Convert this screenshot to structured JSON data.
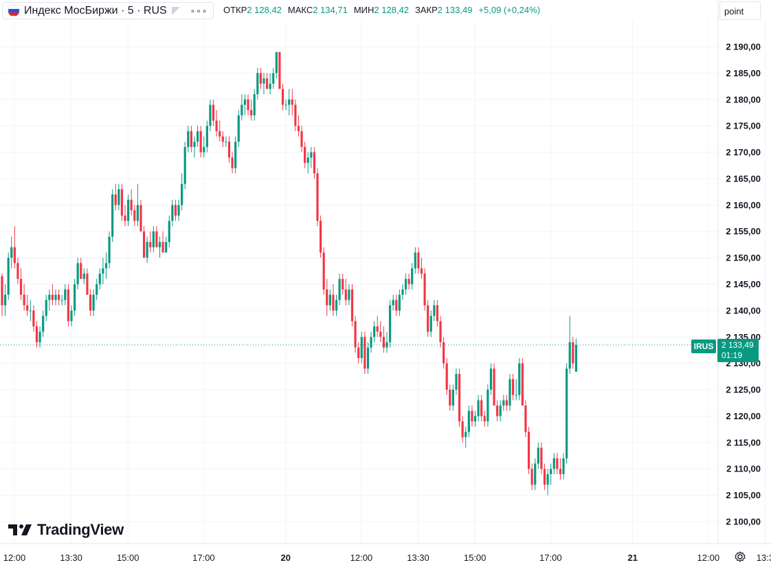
{
  "header": {
    "title": "Индекс МосБиржи · 5 · RUS",
    "more_icon": "more-dots-icon",
    "ohlc": [
      {
        "label": "ОТКР",
        "value": "2 128,42"
      },
      {
        "label": "МАКС",
        "value": "2 134,71"
      },
      {
        "label": "МИН",
        "value": "2 128,42"
      },
      {
        "label": "ЗАКР",
        "value": "2 133,49"
      }
    ],
    "change": "+5,09 (+0,24%)",
    "scale_mode": "point"
  },
  "logo": "TradingView",
  "last_price": {
    "symbol": "IRUS",
    "price": "2 133,49",
    "countdown": "01:19",
    "value": 2133.49
  },
  "colors": {
    "up": "#089981",
    "down": "#f23645",
    "grid": "#f0f3fa",
    "text": "#131722"
  },
  "chart_data": {
    "type": "candlestick",
    "y_ticks": [
      "2 190,00",
      "2 185,00",
      "2 180,00",
      "2 175,00",
      "2 170,00",
      "2 165,00",
      "2 160,00",
      "2 155,00",
      "2 150,00",
      "2 145,00",
      "2 140,00",
      "2 135,00",
      "2 130,00",
      "2 125,00",
      "2 120,00",
      "2 115,00",
      "2 110,00",
      "2 105,00",
      "2 100,00"
    ],
    "y_tick_values": [
      2190,
      2185,
      2180,
      2175,
      2170,
      2165,
      2160,
      2155,
      2150,
      2145,
      2140,
      2135,
      2130,
      2125,
      2120,
      2115,
      2110,
      2105,
      2100
    ],
    "ylim": [
      2098.5,
      2192.5
    ],
    "x_ticks": [
      {
        "label": "12:00",
        "index": 0
      },
      {
        "label": "13:30",
        "index": 18
      },
      {
        "label": "15:00",
        "index": 36
      },
      {
        "label": "17:00",
        "index": 60
      },
      {
        "label": "20",
        "index": 86,
        "bold": true
      },
      {
        "label": "12:00",
        "index": 110
      },
      {
        "label": "13:30",
        "index": 128
      },
      {
        "label": "15:00",
        "index": 146
      },
      {
        "label": "17:00",
        "index": 170
      },
      {
        "label": "21",
        "index": 196,
        "bold": true
      },
      {
        "label": "12:00",
        "index": 220
      },
      {
        "label": "13:3",
        "index": 238
      }
    ],
    "candles": [
      [
        2146.5,
        2147,
        2139,
        2141
      ],
      [
        2141,
        2145,
        2139,
        2143
      ],
      [
        2143,
        2151,
        2142,
        2150
      ],
      [
        2150,
        2154,
        2148,
        2152
      ],
      [
        2152,
        2156,
        2148,
        2149
      ],
      [
        2149,
        2150,
        2145,
        2146
      ],
      [
        2146,
        2148,
        2142,
        2143
      ],
      [
        2143,
        2145,
        2140,
        2141
      ],
      [
        2141,
        2143,
        2139,
        2140
      ],
      [
        2140,
        2142,
        2138,
        2140
      ],
      [
        2140,
        2141,
        2136,
        2137
      ],
      [
        2137,
        2138,
        2133,
        2134
      ],
      [
        2134,
        2137,
        2133,
        2136
      ],
      [
        2136,
        2140,
        2135,
        2139
      ],
      [
        2139,
        2143,
        2138,
        2142
      ],
      [
        2142,
        2144,
        2140,
        2143
      ],
      [
        2143,
        2145,
        2141,
        2142
      ],
      [
        2142,
        2144,
        2141,
        2143
      ],
      [
        2143,
        2144,
        2141,
        2142
      ],
      [
        2142,
        2143,
        2141,
        2142
      ],
      [
        2142,
        2145,
        2141,
        2144
      ],
      [
        2144,
        2145,
        2137,
        2138
      ],
      [
        2138,
        2141,
        2137,
        2140
      ],
      [
        2140,
        2146,
        2139,
        2145
      ],
      [
        2145,
        2150,
        2144,
        2149
      ],
      [
        2149,
        2150,
        2146,
        2146
      ],
      [
        2146,
        2148,
        2145,
        2147
      ],
      [
        2147,
        2148,
        2143,
        2143
      ],
      [
        2143,
        2144,
        2139,
        2140
      ],
      [
        2140,
        2144,
        2139,
        2143
      ],
      [
        2143,
        2146,
        2142,
        2145
      ],
      [
        2145,
        2148,
        2144,
        2147
      ],
      [
        2147,
        2150,
        2145,
        2148
      ],
      [
        2148,
        2151,
        2146,
        2149
      ],
      [
        2149,
        2155,
        2148,
        2154
      ],
      [
        2154,
        2163,
        2153,
        2162
      ],
      [
        2162,
        2164,
        2159,
        2160
      ],
      [
        2160,
        2164,
        2159,
        2163
      ],
      [
        2163,
        2164,
        2157,
        2158
      ],
      [
        2158,
        2160,
        2156,
        2157
      ],
      [
        2157,
        2162,
        2156,
        2161
      ],
      [
        2161,
        2163,
        2158,
        2159
      ],
      [
        2159,
        2160,
        2156,
        2157
      ],
      [
        2157,
        2164,
        2156,
        2160
      ],
      [
        2160,
        2161,
        2155,
        2155
      ],
      [
        2155,
        2156,
        2150,
        2150
      ],
      [
        2150,
        2154,
        2149,
        2153
      ],
      [
        2153,
        2155,
        2151,
        2152
      ],
      [
        2152,
        2156,
        2151,
        2155
      ],
      [
        2155,
        2156,
        2152,
        2152
      ],
      [
        2152,
        2154,
        2150,
        2153
      ],
      [
        2153,
        2155,
        2151,
        2151
      ],
      [
        2151,
        2154,
        2151,
        2153
      ],
      [
        2153,
        2158,
        2152,
        2157
      ],
      [
        2157,
        2161,
        2156,
        2160
      ],
      [
        2160,
        2161,
        2157,
        2158
      ],
      [
        2158,
        2161,
        2157,
        2160
      ],
      [
        2160,
        2166,
        2159,
        2164
      ],
      [
        2164,
        2172,
        2163,
        2171
      ],
      [
        2171,
        2175,
        2170,
        2174
      ],
      [
        2174,
        2175,
        2170,
        2171
      ],
      [
        2171,
        2173,
        2169,
        2172
      ],
      [
        2172,
        2175,
        2171,
        2174
      ],
      [
        2174,
        2175,
        2169,
        2170
      ],
      [
        2170,
        2173,
        2169,
        2171
      ],
      [
        2171,
        2176,
        2170,
        2175
      ],
      [
        2175,
        2180,
        2174,
        2179
      ],
      [
        2179,
        2180,
        2175,
        2176
      ],
      [
        2176,
        2178,
        2173,
        2174
      ],
      [
        2174,
        2176,
        2172,
        2173
      ],
      [
        2173,
        2174,
        2171,
        2172
      ],
      [
        2172,
        2173,
        2171,
        2172
      ],
      [
        2172,
        2173,
        2168,
        2169
      ],
      [
        2169,
        2170,
        2166,
        2167
      ],
      [
        2167,
        2173,
        2166,
        2172
      ],
      [
        2172,
        2178,
        2171,
        2177
      ],
      [
        2177,
        2181,
        2176,
        2179
      ],
      [
        2179,
        2181,
        2177,
        2180
      ],
      [
        2180,
        2181,
        2177,
        2178
      ],
      [
        2178,
        2180,
        2176,
        2177
      ],
      [
        2177,
        2182,
        2176,
        2181
      ],
      [
        2181,
        2186,
        2180,
        2185
      ],
      [
        2185,
        2186,
        2182,
        2183
      ],
      [
        2183,
        2185,
        2181,
        2184
      ],
      [
        2184,
        2185,
        2182,
        2182
      ],
      [
        2182,
        2185,
        2181,
        2183
      ],
      [
        2183,
        2186,
        2182,
        2185
      ],
      [
        2185,
        2189,
        2184,
        2189
      ],
      [
        2189,
        2189,
        2182,
        2182
      ],
      [
        2182,
        2183,
        2178,
        2179
      ],
      [
        2179,
        2180,
        2178,
        2179
      ],
      [
        2179,
        2182,
        2177,
        2180
      ],
      [
        2180,
        2182,
        2177,
        2179
      ],
      [
        2179,
        2180,
        2174,
        2175
      ],
      [
        2175,
        2177,
        2173,
        2174
      ],
      [
        2174,
        2175,
        2170,
        2171
      ],
      [
        2171,
        2172,
        2167,
        2168
      ],
      [
        2168,
        2170,
        2166,
        2169
      ],
      [
        2169,
        2171,
        2167,
        2170
      ],
      [
        2170,
        2171,
        2165,
        2166
      ],
      [
        2166,
        2167,
        2156,
        2157
      ],
      [
        2157,
        2158,
        2150,
        2151
      ],
      [
        2151,
        2152,
        2143,
        2144
      ],
      [
        2144,
        2146,
        2139,
        2141
      ],
      [
        2141,
        2144,
        2140,
        2143
      ],
      [
        2143,
        2145,
        2139,
        2140
      ],
      [
        2140,
        2143,
        2139,
        2142
      ],
      [
        2142,
        2147,
        2141,
        2146
      ],
      [
        2146,
        2147,
        2143,
        2144
      ],
      [
        2144,
        2146,
        2141,
        2142
      ],
      [
        2142,
        2145,
        2141,
        2144
      ],
      [
        2144,
        2145,
        2137,
        2138
      ],
      [
        2138,
        2139,
        2132,
        2133
      ],
      [
        2133,
        2134,
        2130,
        2131
      ],
      [
        2131,
        2136,
        2130,
        2135
      ],
      [
        2135,
        2136,
        2128,
        2129
      ],
      [
        2129,
        2134,
        2128,
        2133
      ],
      [
        2133,
        2136,
        2132,
        2135
      ],
      [
        2135,
        2138,
        2134,
        2137
      ],
      [
        2137,
        2139,
        2135,
        2136
      ],
      [
        2136,
        2138,
        2134,
        2135
      ],
      [
        2135,
        2137,
        2132,
        2133
      ],
      [
        2133,
        2136,
        2132,
        2134
      ],
      [
        2134,
        2142,
        2133,
        2141
      ],
      [
        2141,
        2143,
        2140,
        2142
      ],
      [
        2142,
        2143,
        2139,
        2140
      ],
      [
        2140,
        2144,
        2139,
        2143
      ],
      [
        2143,
        2145,
        2142,
        2144
      ],
      [
        2144,
        2147,
        2143,
        2146
      ],
      [
        2146,
        2147,
        2144,
        2145
      ],
      [
        2145,
        2149,
        2144,
        2148
      ],
      [
        2148,
        2152,
        2147,
        2151
      ],
      [
        2151,
        2152,
        2147,
        2148
      ],
      [
        2148,
        2150,
        2146,
        2147
      ],
      [
        2147,
        2148,
        2140,
        2141
      ],
      [
        2141,
        2142,
        2135,
        2136
      ],
      [
        2136,
        2140,
        2135,
        2139
      ],
      [
        2139,
        2142,
        2138,
        2141
      ],
      [
        2141,
        2142,
        2137,
        2138
      ],
      [
        2138,
        2139,
        2133,
        2134
      ],
      [
        2134,
        2135,
        2129,
        2130
      ],
      [
        2130,
        2131,
        2124,
        2125
      ],
      [
        2125,
        2126,
        2121,
        2122
      ],
      [
        2122,
        2126,
        2121,
        2125
      ],
      [
        2125,
        2129,
        2124,
        2128
      ],
      [
        2128,
        2129,
        2118,
        2119
      ],
      [
        2119,
        2120,
        2115,
        2116
      ],
      [
        2116,
        2118,
        2114,
        2117
      ],
      [
        2117,
        2122,
        2116,
        2121
      ],
      [
        2121,
        2122,
        2118,
        2119
      ],
      [
        2119,
        2121,
        2118,
        2120
      ],
      [
        2120,
        2124,
        2119,
        2123
      ],
      [
        2123,
        2124,
        2119,
        2120
      ],
      [
        2120,
        2121,
        2118,
        2119
      ],
      [
        2119,
        2126,
        2118,
        2125
      ],
      [
        2125,
        2130,
        2124,
        2129
      ],
      [
        2129,
        2130,
        2122,
        2122
      ],
      [
        2122,
        2123,
        2119,
        2120
      ],
      [
        2120,
        2123,
        2119,
        2122
      ],
      [
        2122,
        2124,
        2121,
        2123
      ],
      [
        2123,
        2124,
        2121,
        2122
      ],
      [
        2122,
        2128,
        2121,
        2127
      ],
      [
        2127,
        2128,
        2123,
        2124
      ],
      [
        2124,
        2127,
        2123,
        2124
      ],
      [
        2124,
        2131,
        2123,
        2130
      ],
      [
        2130,
        2131,
        2122,
        2122
      ],
      [
        2122,
        2123,
        2116,
        2117
      ],
      [
        2117,
        2118,
        2109,
        2110
      ],
      [
        2110,
        2111,
        2106,
        2107
      ],
      [
        2107,
        2112,
        2106,
        2111
      ],
      [
        2111,
        2115,
        2110,
        2114
      ],
      [
        2114,
        2115,
        2109,
        2110
      ],
      [
        2110,
        2111,
        2106,
        2107
      ],
      [
        2107,
        2110,
        2105,
        2109
      ],
      [
        2109,
        2111,
        2107,
        2110
      ],
      [
        2110,
        2113,
        2109,
        2112
      ],
      [
        2112,
        2113,
        2109,
        2110
      ],
      [
        2110,
        2112,
        2108,
        2109
      ],
      [
        2109,
        2113,
        2108,
        2112
      ],
      [
        2112,
        2130,
        2111,
        2129
      ],
      [
        2129,
        2139,
        2128,
        2134
      ],
      [
        2134,
        2135,
        2129,
        2130
      ],
      [
        2128.42,
        2134.71,
        2128.42,
        2133.49
      ]
    ]
  }
}
